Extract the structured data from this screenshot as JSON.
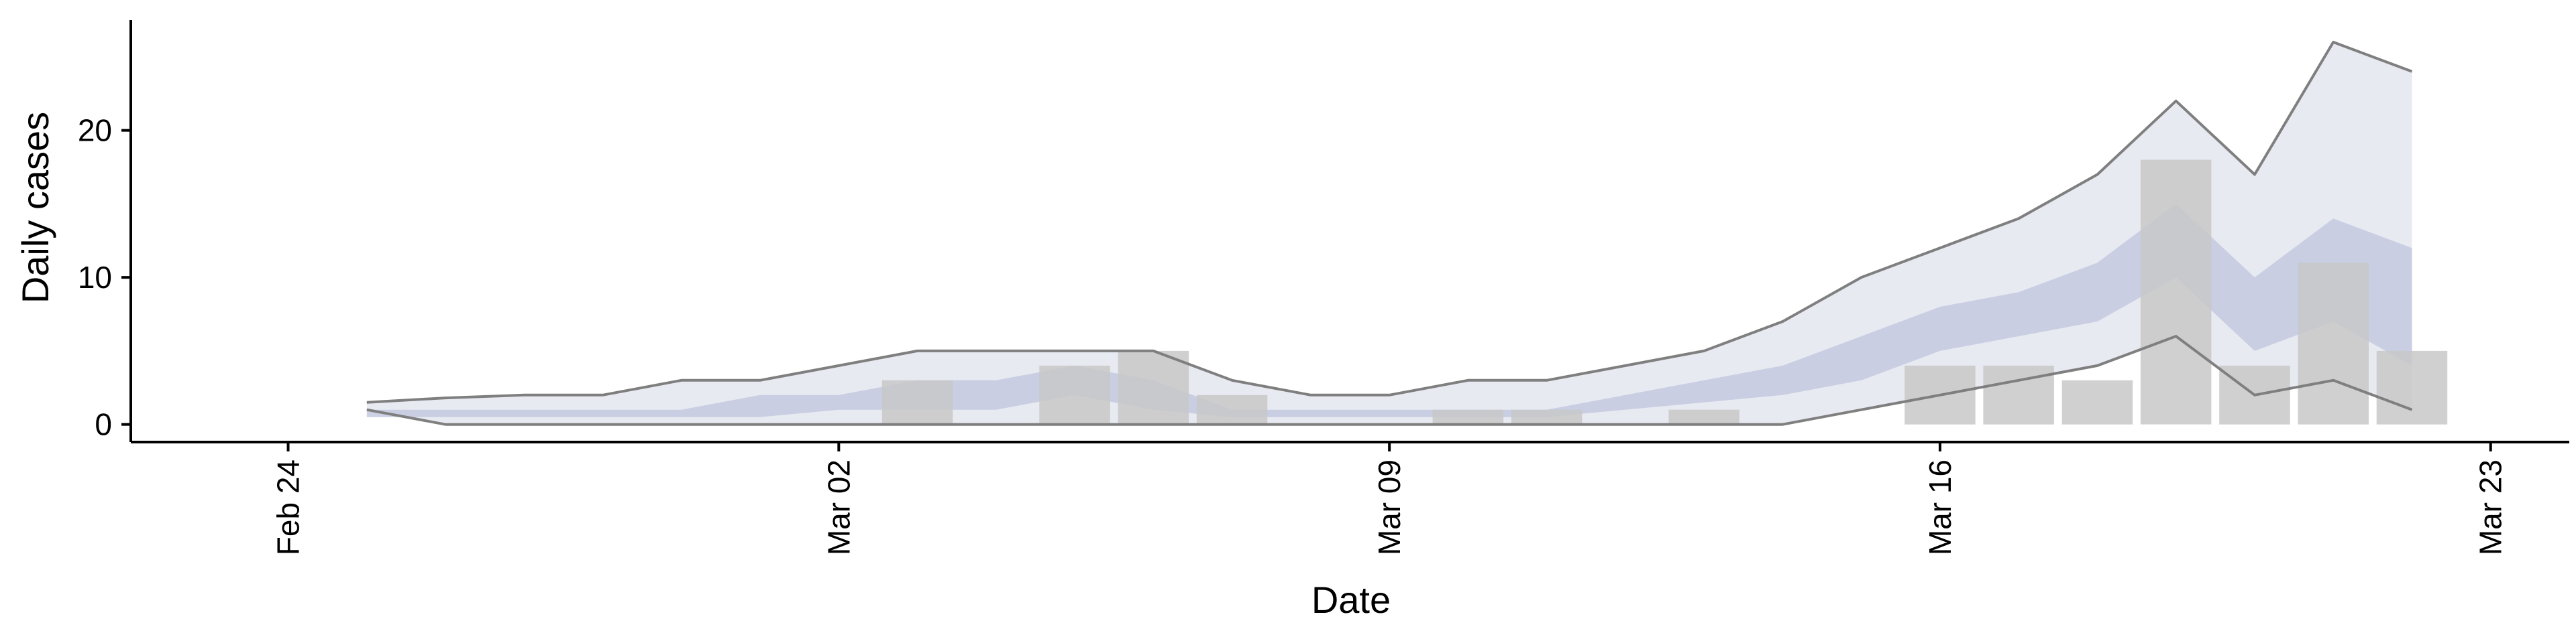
{
  "chart_data": {
    "type": "bar",
    "xlabel": "Date",
    "ylabel": "Daily cases",
    "x_ticks": [
      {
        "date": "2020-02-24",
        "label": "Feb 24"
      },
      {
        "date": "2020-03-02",
        "label": "Mar 02"
      },
      {
        "date": "2020-03-09",
        "label": "Mar 09"
      },
      {
        "date": "2020-03-16",
        "label": "Mar 16"
      },
      {
        "date": "2020-03-23",
        "label": "Mar 23"
      }
    ],
    "y_ticks": [
      0,
      10,
      20
    ],
    "xlim": [
      "2020-02-22",
      "2020-03-24"
    ],
    "ylim": [
      -1.2,
      27.5
    ],
    "grid": false,
    "legend": "none",
    "colors": {
      "bars": "#c8c8c8",
      "band_outer": "#e8eaf2",
      "band_inner": "#c3c9df",
      "bound_lines": "#7f7f7f",
      "axis": "#000000"
    },
    "bars": [
      {
        "date": "2020-03-03",
        "value": 3
      },
      {
        "date": "2020-03-05",
        "value": 4
      },
      {
        "date": "2020-03-06",
        "value": 5
      },
      {
        "date": "2020-03-07",
        "value": 2
      },
      {
        "date": "2020-03-10",
        "value": 1
      },
      {
        "date": "2020-03-11",
        "value": 1
      },
      {
        "date": "2020-03-13",
        "value": 1
      },
      {
        "date": "2020-03-16",
        "value": 4
      },
      {
        "date": "2020-03-17",
        "value": 4
      },
      {
        "date": "2020-03-18",
        "value": 3
      },
      {
        "date": "2020-03-19",
        "value": 18
      },
      {
        "date": "2020-03-20",
        "value": 4
      },
      {
        "date": "2020-03-21",
        "value": 11
      },
      {
        "date": "2020-03-22",
        "value": 5
      }
    ],
    "estimate": {
      "dates": [
        "2020-02-25",
        "2020-02-26",
        "2020-02-27",
        "2020-02-28",
        "2020-02-29",
        "2020-03-01",
        "2020-03-02",
        "2020-03-03",
        "2020-03-04",
        "2020-03-05",
        "2020-03-06",
        "2020-03-07",
        "2020-03-08",
        "2020-03-09",
        "2020-03-10",
        "2020-03-11",
        "2020-03-12",
        "2020-03-13",
        "2020-03-14",
        "2020-03-15",
        "2020-03-16",
        "2020-03-17",
        "2020-03-18",
        "2020-03-19",
        "2020-03-20",
        "2020-03-21",
        "2020-03-22"
      ],
      "outer_upper": [
        1.5,
        1.8,
        2,
        2,
        3,
        3,
        4,
        5,
        5,
        5,
        5,
        3,
        2,
        2,
        3,
        3,
        4,
        5,
        7,
        10,
        12,
        14,
        17,
        22,
        17,
        26,
        24
      ],
      "outer_lower": [
        1,
        0,
        0,
        0,
        0,
        0,
        0,
        0,
        0,
        0,
        0,
        0,
        0,
        0,
        0,
        0,
        0,
        0,
        0,
        1,
        2,
        3,
        4,
        6,
        2,
        3,
        1
      ],
      "inner_upper": [
        1,
        1,
        1,
        1,
        1,
        2,
        2,
        3,
        3,
        4,
        3,
        1,
        1,
        1,
        1,
        1,
        2,
        3,
        4,
        6,
        8,
        9,
        11,
        15,
        10,
        14,
        12
      ],
      "inner_lower": [
        0.5,
        0.5,
        0.5,
        0.5,
        0.5,
        0.5,
        1,
        1,
        1,
        2,
        1,
        0.5,
        0.5,
        0.5,
        0.5,
        0.5,
        1,
        1.5,
        2,
        3,
        5,
        6,
        7,
        10,
        5,
        7,
        4
      ]
    }
  }
}
